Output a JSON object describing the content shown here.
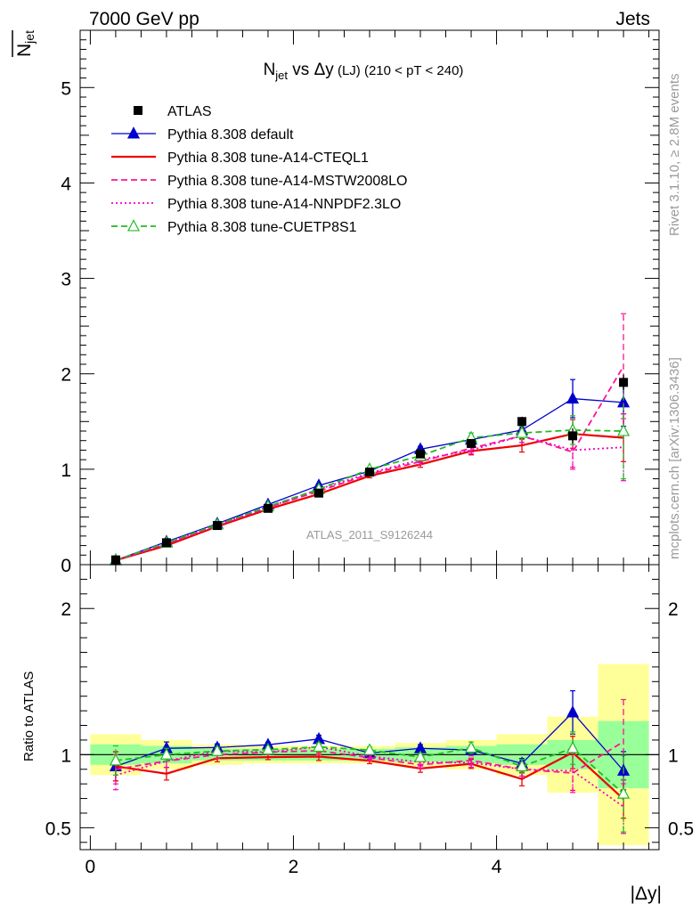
{
  "header": {
    "left": "7000 GeV pp",
    "right": "Jets"
  },
  "side_labels": {
    "rivet": "Rivet 3.1.10, ≥ 2.8M events",
    "mcplots": "mcplots.cern.ch [arXiv:1306.3436]"
  },
  "chart_data": {
    "type": "line",
    "title_main": "N",
    "title_sub": "jet",
    "title_rest": " vs Δy",
    "title_small": " (LJ)",
    "title_range": " (210 < pT < 240)",
    "ylabel_main": "N",
    "ylabel_sub": "jet",
    "xlabel": "|Δy|",
    "ratio_ylabel": "Ratio to ATLAS",
    "watermark": "ATLAS_2011_S9126244",
    "xlim": [
      -0.1,
      5.6
    ],
    "ylim": [
      0,
      5.6
    ],
    "ratio_ylim": [
      0.35,
      2.3
    ],
    "x_ticks": [
      "0",
      "2",
      "4"
    ],
    "y_ticks": [
      "0",
      "1",
      "2",
      "3",
      "4",
      "5"
    ],
    "ratio_ticks": [
      "0.5",
      "1",
      "2"
    ],
    "x": [
      0.25,
      0.75,
      1.25,
      1.75,
      2.25,
      2.75,
      3.25,
      3.75,
      4.25,
      4.75,
      5.25
    ],
    "data": {
      "name": "ATLAS",
      "values": [
        0.05,
        0.23,
        0.41,
        0.59,
        0.75,
        0.97,
        1.16,
        1.27,
        1.5,
        1.35,
        1.91
      ],
      "errors": [
        0.01,
        0.01,
        0.01,
        0.01,
        0.02,
        0.02,
        0.03,
        0.04,
        0.05,
        0.08,
        0.08
      ],
      "band_inner": [
        0.07,
        0.06,
        0.04,
        0.04,
        0.04,
        0.04,
        0.05,
        0.06,
        0.07,
        0.1,
        0.23
      ],
      "band_outer": [
        0.14,
        0.1,
        0.07,
        0.06,
        0.06,
        0.06,
        0.08,
        0.1,
        0.14,
        0.26,
        0.62
      ]
    },
    "series": [
      {
        "name": "Pythia 8.308 default",
        "color": "#0000cc",
        "style": "solid",
        "marker": "triangle-filled",
        "values": [
          0.046,
          0.24,
          0.43,
          0.63,
          0.83,
          0.98,
          1.21,
          1.31,
          1.41,
          1.74,
          1.7
        ],
        "errors": [
          0.005,
          0.01,
          0.01,
          0.01,
          0.02,
          0.02,
          0.03,
          0.04,
          0.05,
          0.2,
          0.25
        ]
      },
      {
        "name": "Pythia 8.308 tune-A14-CTEQL1",
        "color": "#ee0000",
        "style": "solid",
        "marker": "none",
        "values": [
          0.046,
          0.2,
          0.4,
          0.58,
          0.74,
          0.93,
          1.05,
          1.19,
          1.25,
          1.37,
          1.33
        ],
        "errors": [
          0.005,
          0.01,
          0.01,
          0.01,
          0.02,
          0.02,
          0.03,
          0.04,
          0.07,
          0.15,
          0.25
        ]
      },
      {
        "name": "Pythia 8.308 tune-A14-MSTW2008LO",
        "color": "#ff1493",
        "style": "dashed",
        "marker": "none",
        "values": [
          0.045,
          0.22,
          0.41,
          0.6,
          0.77,
          0.95,
          1.08,
          1.22,
          1.35,
          1.18,
          2.08
        ],
        "errors": [
          0.005,
          0.01,
          0.01,
          0.01,
          0.02,
          0.02,
          0.03,
          0.04,
          0.07,
          0.18,
          0.55
        ]
      },
      {
        "name": "Pythia 8.308 tune-A14-NNPDF2.3LO",
        "color": "#ee00cc",
        "style": "dotted",
        "marker": "none",
        "values": [
          0.043,
          0.22,
          0.42,
          0.6,
          0.79,
          0.96,
          1.1,
          1.2,
          1.35,
          1.2,
          1.23
        ],
        "errors": [
          0.005,
          0.01,
          0.01,
          0.01,
          0.02,
          0.02,
          0.03,
          0.04,
          0.07,
          0.18,
          0.35
        ]
      },
      {
        "name": "Pythia 8.308 tune-CUETP8S1",
        "color": "#22bb22",
        "style": "dashed",
        "marker": "triangle-open",
        "values": [
          0.048,
          0.23,
          0.42,
          0.61,
          0.79,
          1.0,
          1.14,
          1.33,
          1.38,
          1.41,
          1.4
        ],
        "errors": [
          0.005,
          0.01,
          0.01,
          0.01,
          0.02,
          0.02,
          0.03,
          0.05,
          0.07,
          0.15,
          0.5
        ]
      }
    ]
  }
}
